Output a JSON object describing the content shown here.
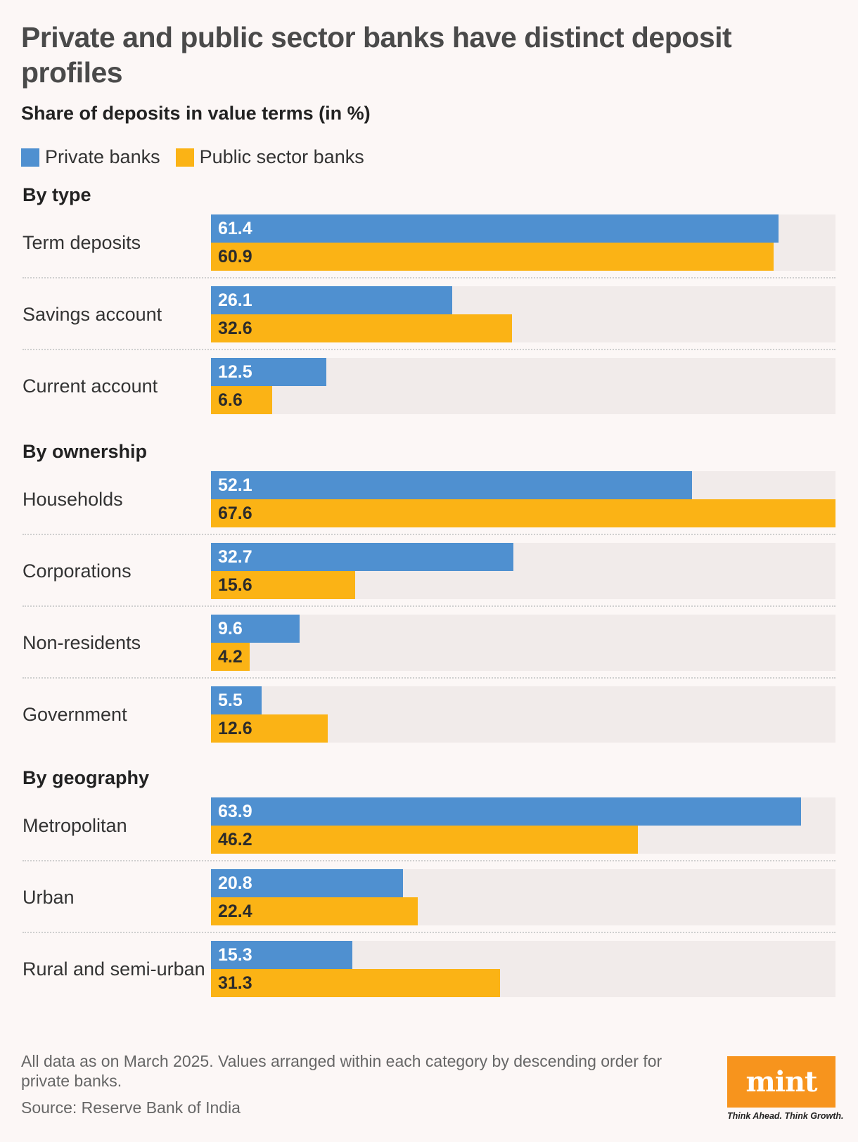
{
  "title": "Private and public sector banks have distinct deposit profiles",
  "subtitle": "Share of deposits in value terms (in %)",
  "legend": [
    {
      "label": "Private banks",
      "color": "#4f90d0"
    },
    {
      "label": "Public sector banks",
      "color": "#fbb315"
    }
  ],
  "chart_data": {
    "type": "bar",
    "orientation": "horizontal",
    "xlim": [
      0,
      67.6
    ],
    "series_names": [
      "Private banks",
      "Public sector banks"
    ],
    "groups": [
      {
        "name": "By type",
        "rows": [
          {
            "label": "Term deposits",
            "private": 61.4,
            "public": 60.9
          },
          {
            "label": "Savings account",
            "private": 26.1,
            "public": 32.6
          },
          {
            "label": "Current account",
            "private": 12.5,
            "public": 6.6
          }
        ]
      },
      {
        "name": "By ownership",
        "rows": [
          {
            "label": "Households",
            "private": 52.1,
            "public": 67.6
          },
          {
            "label": "Corporations",
            "private": 32.7,
            "public": 15.6
          },
          {
            "label": "Non-residents",
            "private": 9.6,
            "public": 4.2
          },
          {
            "label": "Government",
            "private": 5.5,
            "public": 12.6
          }
        ]
      },
      {
        "name": "By geography",
        "rows": [
          {
            "label": "Metropolitan",
            "private": 63.9,
            "public": 46.2
          },
          {
            "label": "Urban",
            "private": 20.8,
            "public": 22.4
          },
          {
            "label": "Rural and semi-urban",
            "private": 15.3,
            "public": 31.3
          }
        ]
      }
    ]
  },
  "footnote": "All data as on March 2025. Values arranged within each category by descending order for private banks.",
  "source": "Source: Reserve Bank of India",
  "logo": {
    "text": "mint",
    "tagline": "Think Ahead. Think Growth.",
    "color": "#f7941d"
  }
}
